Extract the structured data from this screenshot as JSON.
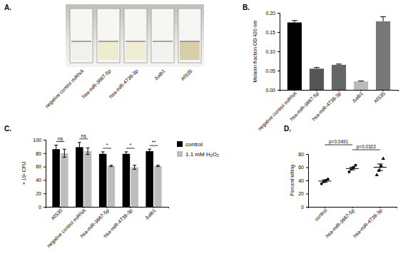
{
  "panel_labels": [
    "A.",
    "B.",
    "C.",
    "D."
  ],
  "photo": {
    "labels": [
      "negative control miRNA",
      "hsa-miR-3667-5p",
      "hsa-miR-4738-3p",
      "Δalb1",
      "AfS35"
    ]
  },
  "chart_data": [
    {
      "type": "bar",
      "y_label": "Melanin fraction OD 420 nm",
      "categories": [
        "negative control miRNA",
        "hsa-miR-3667-5p",
        "hsa-miR-4738-3p",
        "Δalb1",
        "AfS35"
      ],
      "values": [
        0.175,
        0.055,
        0.065,
        0.022,
        0.178
      ],
      "errors": [
        0.005,
        0.003,
        0.002,
        0.001,
        0.012
      ],
      "colors": [
        "#000000",
        "#555555",
        "#666666",
        "#bbbbbb",
        "#777777"
      ],
      "ylim": [
        0,
        0.2
      ],
      "yticks": [
        {
          "value": 0,
          "label": "0.00"
        },
        {
          "value": 0.05,
          "label": "0.05"
        },
        {
          "value": 0.1,
          "label": "0.10"
        },
        {
          "value": 0.15,
          "label": "0.15"
        },
        {
          "value": 0.2,
          "label": "0.20"
        }
      ]
    },
    {
      "type": "bar",
      "y_label": "× 10³ CFU",
      "categories": [
        "AfS35",
        "negative control miRNA",
        "hsa-miR-3667-5p",
        "hsa-miR-4738-3p",
        "Δalb1"
      ],
      "series": [
        {
          "name": "control",
          "color": "#000000",
          "values": [
            86,
            89,
            79,
            79,
            83
          ],
          "errors": [
            6,
            7,
            3,
            3,
            3
          ]
        },
        {
          "name": "1.1 mM H₂O₂",
          "color": "#bdbdbd",
          "values": [
            80,
            83,
            61,
            59,
            61
          ],
          "errors": [
            6,
            5,
            1,
            3,
            1
          ]
        }
      ],
      "annotations": [
        "ns",
        "ns",
        "*",
        "*",
        "**"
      ],
      "ylim": [
        0,
        100
      ],
      "yticks": [
        0,
        20,
        40,
        60,
        80,
        100
      ],
      "legend": "right"
    },
    {
      "type": "scatter",
      "y_label": "Percent killing",
      "categories": [
        "control",
        "hsa-miR-3667-5p",
        "hsa-miR-4738-3p"
      ],
      "points": [
        [
          35,
          38,
          40,
          42
        ],
        [
          53,
          57,
          60,
          63
        ],
        [
          48,
          55,
          62,
          73
        ]
      ],
      "means": [
        39,
        58,
        60
      ],
      "sem": [
        2,
        2,
        5
      ],
      "comparisons": [
        {
          "groups": [
            "control",
            "hsa-miR-3667-5p"
          ],
          "label": "p=0.0491"
        },
        {
          "groups": [
            "hsa-miR-3667-5p",
            "hsa-miR-4738-3p"
          ],
          "label": "p=0.0322"
        }
      ],
      "color": "#000000",
      "ylim": [
        0,
        80
      ],
      "yticks": [
        0,
        20,
        40,
        60,
        80
      ]
    }
  ]
}
